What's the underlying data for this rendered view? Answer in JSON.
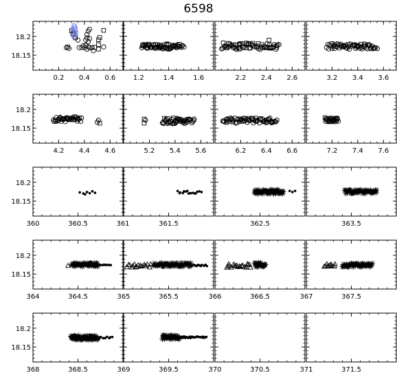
{
  "title": "6598",
  "colors": {
    "axis": "#000000",
    "marker": "#000000",
    "highlight": "#6f7ee6"
  },
  "chart_data": {
    "type": "scatter",
    "title": "6598",
    "ylim": [
      18.24,
      18.11
    ],
    "yticks": [
      "18.15",
      "18.2"
    ],
    "yticks_values": [
      18.15,
      18.2
    ],
    "marker_legend": {
      "circle": "open circles",
      "square": "open squares",
      "asterisk": "asterisks",
      "dot": "filled dots",
      "triangle": "open triangles"
    },
    "panels": [
      {
        "id": "p0",
        "xlim": [
          0.0,
          0.7
        ],
        "ticks": [
          0.2,
          0.4,
          0.6
        ],
        "labels": [
          "0.2",
          "0.4",
          "0.6"
        ],
        "points": [
          {
            "x": 0.26,
            "y": 18.17,
            "m": "circle"
          },
          {
            "x": 0.27,
            "y": 18.172,
            "m": "square"
          },
          {
            "x": 0.28,
            "y": 18.168,
            "m": "circle"
          },
          {
            "x": 0.3,
            "y": 18.215,
            "m": "square"
          },
          {
            "x": 0.31,
            "y": 18.207,
            "m": "square"
          },
          {
            "x": 0.32,
            "y": 18.2,
            "m": "circle"
          },
          {
            "x": 0.33,
            "y": 18.196,
            "m": "square"
          },
          {
            "x": 0.32,
            "y": 18.211,
            "m": "circle"
          },
          {
            "x": 0.35,
            "y": 18.19,
            "m": "circle"
          },
          {
            "x": 0.36,
            "y": 18.17,
            "m": "circle"
          },
          {
            "x": 0.38,
            "y": 18.17,
            "m": "circle"
          },
          {
            "x": 0.39,
            "y": 18.175,
            "m": "circle"
          },
          {
            "x": 0.4,
            "y": 18.17,
            "m": "circle"
          },
          {
            "x": 0.41,
            "y": 18.176,
            "m": "circle"
          },
          {
            "x": 0.42,
            "y": 18.166,
            "m": "circle"
          },
          {
            "x": 0.43,
            "y": 18.172,
            "m": "circle"
          },
          {
            "x": 0.44,
            "y": 18.17,
            "m": "circle"
          },
          {
            "x": 0.41,
            "y": 18.19,
            "m": "circle"
          },
          {
            "x": 0.43,
            "y": 18.186,
            "m": "circle"
          },
          {
            "x": 0.42,
            "y": 18.196,
            "m": "circle"
          },
          {
            "x": 0.44,
            "y": 18.194,
            "m": "circle"
          },
          {
            "x": 0.42,
            "y": 18.205,
            "m": "circle"
          },
          {
            "x": 0.43,
            "y": 18.214,
            "m": "circle"
          },
          {
            "x": 0.44,
            "y": 18.219,
            "m": "circle"
          },
          {
            "x": 0.46,
            "y": 18.17,
            "m": "circle"
          },
          {
            "x": 0.47,
            "y": 18.162,
            "m": "circle"
          },
          {
            "x": 0.48,
            "y": 18.171,
            "m": "square"
          },
          {
            "x": 0.51,
            "y": 18.166,
            "m": "square"
          },
          {
            "x": 0.51,
            "y": 18.178,
            "m": "square"
          },
          {
            "x": 0.51,
            "y": 18.191,
            "m": "square"
          },
          {
            "x": 0.52,
            "y": 18.197,
            "m": "square"
          },
          {
            "x": 0.55,
            "y": 18.216,
            "m": "square"
          },
          {
            "x": 0.55,
            "y": 18.172,
            "m": "circle"
          }
        ],
        "highlight": [
          {
            "x": 0.32,
            "y": 18.2,
            "m": "square"
          },
          {
            "x": 0.325,
            "y": 18.205,
            "m": "square"
          },
          {
            "x": 0.315,
            "y": 18.212,
            "m": "square"
          },
          {
            "x": 0.33,
            "y": 18.218,
            "m": "square"
          },
          {
            "x": 0.325,
            "y": 18.224,
            "m": "square"
          },
          {
            "x": 0.32,
            "y": 18.228,
            "m": "square"
          },
          {
            "x": 0.335,
            "y": 18.209,
            "m": "square"
          },
          {
            "x": 0.31,
            "y": 18.22,
            "m": "square"
          }
        ]
      },
      {
        "id": "p1",
        "xlim": [
          1.1,
          1.7
        ],
        "ticks": [
          1.2,
          1.4,
          1.6
        ],
        "labels": [
          "1.2",
          "1.4",
          "1.6"
        ],
        "bands": [
          {
            "x0": 1.22,
            "x1": 1.5,
            "y": 18.172,
            "h": 0.006,
            "m": "circle",
            "n": 48
          },
          {
            "x0": 1.23,
            "x1": 1.47,
            "y": 18.174,
            "h": 0.006,
            "m": "square",
            "n": 18
          }
        ]
      },
      {
        "id": "p2",
        "xlim": [
          2.0,
          2.7
        ],
        "ticks": [
          2.2,
          2.4,
          2.6
        ],
        "labels": [
          "2.2",
          "2.4",
          "2.6"
        ],
        "bands": [
          {
            "x0": 2.05,
            "x1": 2.5,
            "y": 18.172,
            "h": 0.007,
            "m": "circle",
            "n": 46
          },
          {
            "x0": 2.06,
            "x1": 2.48,
            "y": 18.175,
            "h": 0.008,
            "m": "square",
            "n": 22
          }
        ],
        "points": [
          {
            "x": 2.42,
            "y": 18.19,
            "m": "square"
          },
          {
            "x": 2.2,
            "y": 18.181,
            "m": "square"
          }
        ]
      },
      {
        "id": "p3",
        "xlim": [
          3.0,
          3.7
        ],
        "ticks": [
          3.2,
          3.4,
          3.6
        ],
        "labels": [
          "3.2",
          "3.4",
          "3.6"
        ],
        "bands": [
          {
            "x0": 3.16,
            "x1": 3.55,
            "y": 18.173,
            "h": 0.007,
            "m": "circle",
            "n": 52
          },
          {
            "x0": 3.2,
            "x1": 3.5,
            "y": 18.176,
            "h": 0.006,
            "m": "square",
            "n": 10
          }
        ]
      },
      {
        "id": "p4",
        "xlim": [
          4.0,
          4.7
        ],
        "ticks": [
          4.2,
          4.4,
          4.6
        ],
        "labels": [
          "4.2",
          "4.4",
          "4.6"
        ],
        "bands": [
          {
            "x0": 4.16,
            "x1": 4.38,
            "y": 18.173,
            "h": 0.006,
            "m": "circle",
            "n": 30
          },
          {
            "x0": 4.18,
            "x1": 4.34,
            "y": 18.176,
            "h": 0.005,
            "m": "square",
            "n": 10
          }
        ],
        "points": [
          {
            "x": 4.5,
            "y": 18.166,
            "m": "circle"
          },
          {
            "x": 4.52,
            "y": 18.163,
            "m": "square"
          },
          {
            "x": 4.51,
            "y": 18.171,
            "m": "circle"
          }
        ]
      },
      {
        "id": "p5",
        "xlim": [
          5.0,
          5.7
        ],
        "ticks": [
          5.2,
          5.4,
          5.6
        ],
        "labels": [
          "5.2",
          "5.4",
          "5.6"
        ],
        "bands": [
          {
            "x0": 5.3,
            "x1": 5.55,
            "y": 18.169,
            "h": 0.007,
            "m": "circle",
            "n": 38
          },
          {
            "x0": 5.32,
            "x1": 5.5,
            "y": 18.172,
            "h": 0.005,
            "m": "square",
            "n": 10
          }
        ],
        "points": [
          {
            "x": 5.16,
            "y": 18.163,
            "m": "square"
          },
          {
            "x": 5.17,
            "y": 18.171,
            "m": "circle"
          },
          {
            "x": 5.16,
            "y": 18.174,
            "m": "square"
          }
        ]
      },
      {
        "id": "p6",
        "xlim": [
          6.0,
          6.7
        ],
        "ticks": [
          6.2,
          6.4,
          6.6
        ],
        "labels": [
          "6.2",
          "6.4",
          "6.6"
        ],
        "bands": [
          {
            "x0": 6.06,
            "x1": 6.48,
            "y": 18.17,
            "h": 0.007,
            "m": "circle",
            "n": 56
          },
          {
            "x0": 6.08,
            "x1": 6.45,
            "y": 18.172,
            "h": 0.006,
            "m": "square",
            "n": 12
          }
        ]
      },
      {
        "id": "p7",
        "xlim": [
          7.0,
          7.7
        ],
        "ticks": [
          7.2,
          7.4,
          7.6
        ],
        "labels": [
          "7.2",
          "7.4",
          "7.6"
        ],
        "bands": [
          {
            "x0": 7.15,
            "x1": 7.25,
            "y": 18.171,
            "h": 0.006,
            "m": "circle",
            "n": 20
          },
          {
            "x0": 7.15,
            "x1": 7.24,
            "y": 18.174,
            "h": 0.005,
            "m": "square",
            "n": 8
          }
        ]
      },
      {
        "id": "p8",
        "xlim": [
          360,
          361
        ],
        "ticks": [
          360,
          360.5,
          361
        ],
        "labels": [
          "360",
          "360.5",
          "361"
        ],
        "points": [
          {
            "x": 360.52,
            "y": 18.173,
            "m": "dot"
          },
          {
            "x": 360.56,
            "y": 18.17,
            "m": "dot"
          },
          {
            "x": 360.6,
            "y": 18.174,
            "m": "dot"
          },
          {
            "x": 360.63,
            "y": 18.171,
            "m": "dot"
          },
          {
            "x": 360.66,
            "y": 18.176,
            "m": "dot"
          },
          {
            "x": 360.69,
            "y": 18.172,
            "m": "dot"
          },
          {
            "x": 360.58,
            "y": 18.168,
            "m": "dot"
          }
        ]
      },
      {
        "id": "p9",
        "xlim": [
          361,
          362
        ],
        "ticks": [
          361.5
        ],
        "labels": [
          "361.5"
        ],
        "bands": [
          {
            "x0": 361.6,
            "x1": 361.86,
            "y": 18.174,
            "h": 0.004,
            "m": "dot",
            "n": 16
          }
        ]
      },
      {
        "id": "p10",
        "xlim": [
          362,
          363
        ],
        "ticks": [
          362.5
        ],
        "labels": [
          "362.5"
        ],
        "bands": [
          {
            "x0": 362.44,
            "x1": 362.76,
            "y": 18.175,
            "h": 0.006,
            "m": "asterisk",
            "n": 48
          }
        ],
        "points": [
          {
            "x": 362.86,
            "y": 18.174,
            "m": "dot"
          },
          {
            "x": 362.89,
            "y": 18.177,
            "m": "dot"
          },
          {
            "x": 362.83,
            "y": 18.177,
            "m": "dot"
          }
        ]
      },
      {
        "id": "p11",
        "xlim": [
          363,
          364
        ],
        "ticks": [
          363.5
        ],
        "labels": [
          "363.5"
        ],
        "bands": [
          {
            "x0": 363.43,
            "x1": 363.78,
            "y": 18.175,
            "h": 0.005,
            "m": "asterisk",
            "n": 48
          }
        ]
      },
      {
        "id": "p12",
        "xlim": [
          364,
          365
        ],
        "ticks": [
          364,
          364.5
        ],
        "labels": [
          "364",
          "364.5"
        ],
        "bands": [
          {
            "x0": 364.43,
            "x1": 364.72,
            "y": 18.175,
            "h": 0.005,
            "m": "asterisk",
            "n": 42
          },
          {
            "x0": 364.72,
            "x1": 364.86,
            "y": 18.174,
            "h": 0.001,
            "m": "dot",
            "n": 10
          }
        ],
        "points": [
          {
            "x": 364.39,
            "y": 18.172,
            "m": "triangle"
          }
        ]
      },
      {
        "id": "p13",
        "xlim": [
          365,
          366
        ],
        "ticks": [
          365,
          365.5
        ],
        "labels": [
          "365",
          "365.5"
        ],
        "bands": [
          {
            "x0": 365.04,
            "x1": 365.3,
            "y": 18.172,
            "h": 0.005,
            "m": "triangle",
            "n": 18
          },
          {
            "x0": 365.33,
            "x1": 365.75,
            "y": 18.175,
            "h": 0.005,
            "m": "asterisk",
            "n": 50
          },
          {
            "x0": 365.75,
            "x1": 365.93,
            "y": 18.173,
            "h": 0.002,
            "m": "dot",
            "n": 14
          }
        ]
      },
      {
        "id": "p14",
        "xlim": [
          366,
          367
        ],
        "ticks": [
          366,
          366.5
        ],
        "labels": [
          "366",
          "366.5"
        ],
        "bands": [
          {
            "x0": 366.13,
            "x1": 366.4,
            "y": 18.172,
            "h": 0.005,
            "m": "triangle",
            "n": 20
          },
          {
            "x0": 366.44,
            "x1": 366.56,
            "y": 18.174,
            "h": 0.006,
            "m": "asterisk",
            "n": 20
          }
        ]
      },
      {
        "id": "p15",
        "xlim": [
          367,
          368
        ],
        "ticks": [
          367,
          367.5
        ],
        "labels": [
          "367",
          "367.5"
        ],
        "bands": [
          {
            "x0": 367.2,
            "x1": 367.32,
            "y": 18.173,
            "h": 0.004,
            "m": "triangle",
            "n": 10
          },
          {
            "x0": 367.4,
            "x1": 367.73,
            "y": 18.174,
            "h": 0.005,
            "m": "asterisk",
            "n": 48
          }
        ]
      },
      {
        "id": "p16",
        "xlim": [
          368,
          369
        ],
        "ticks": [
          368,
          368.5
        ],
        "labels": [
          "368",
          "368.5"
        ],
        "bands": [
          {
            "x0": 368.42,
            "x1": 368.72,
            "y": 18.175,
            "h": 0.006,
            "m": "asterisk",
            "n": 58
          },
          {
            "x0": 368.72,
            "x1": 368.88,
            "y": 18.175,
            "h": 0.002,
            "m": "dot",
            "n": 10
          }
        ]
      },
      {
        "id": "p17",
        "xlim": [
          369,
          370
        ],
        "ticks": [
          369,
          369.5
        ],
        "labels": [
          "369",
          "369.5"
        ],
        "bands": [
          {
            "x0": 369.43,
            "x1": 369.62,
            "y": 18.176,
            "h": 0.005,
            "m": "asterisk",
            "n": 30
          },
          {
            "x0": 369.62,
            "x1": 369.92,
            "y": 18.176,
            "h": 0.002,
            "m": "dot",
            "n": 28
          }
        ]
      },
      {
        "id": "p18",
        "xlim": [
          370,
          371
        ],
        "ticks": [
          370,
          370.5
        ],
        "labels": [
          "370",
          "370.5"
        ]
      },
      {
        "id": "p19",
        "xlim": [
          371,
          372
        ],
        "ticks": [
          371,
          371.5
        ],
        "labels": [
          "371",
          "371.5"
        ]
      }
    ]
  }
}
